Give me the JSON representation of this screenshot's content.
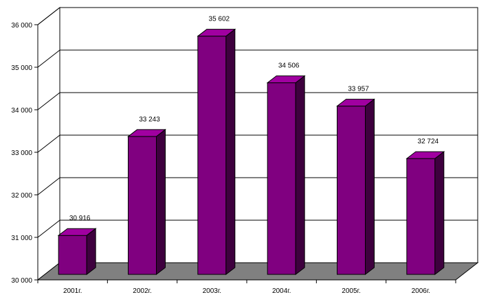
{
  "chart_data": {
    "type": "bar",
    "categories": [
      "2001г.",
      "2002г.",
      "2003г.",
      "2004г.",
      "2005г.",
      "2006г."
    ],
    "values": [
      30916,
      33243,
      35602,
      34506,
      33957,
      32724
    ],
    "value_labels": [
      "30 916",
      "33 243",
      "35 602",
      "34 506",
      "33 957",
      "32 724"
    ],
    "title": "",
    "xlabel": "",
    "ylabel": "",
    "ylim": [
      30000,
      36000
    ],
    "yticks": [
      30000,
      31000,
      32000,
      33000,
      34000,
      35000,
      36000
    ],
    "ytick_labels": [
      "30 000",
      "31 000",
      "32 000",
      "33 000",
      "34 000",
      "35 000",
      "36 000"
    ],
    "grid": true,
    "legend": "none",
    "style": "3d",
    "colors": {
      "bar_front": "#800080",
      "bar_top": "#a000a0",
      "bar_side": "#3e003e",
      "floor": "#808080",
      "wall": "#ffffff",
      "grid": "#000000"
    }
  }
}
